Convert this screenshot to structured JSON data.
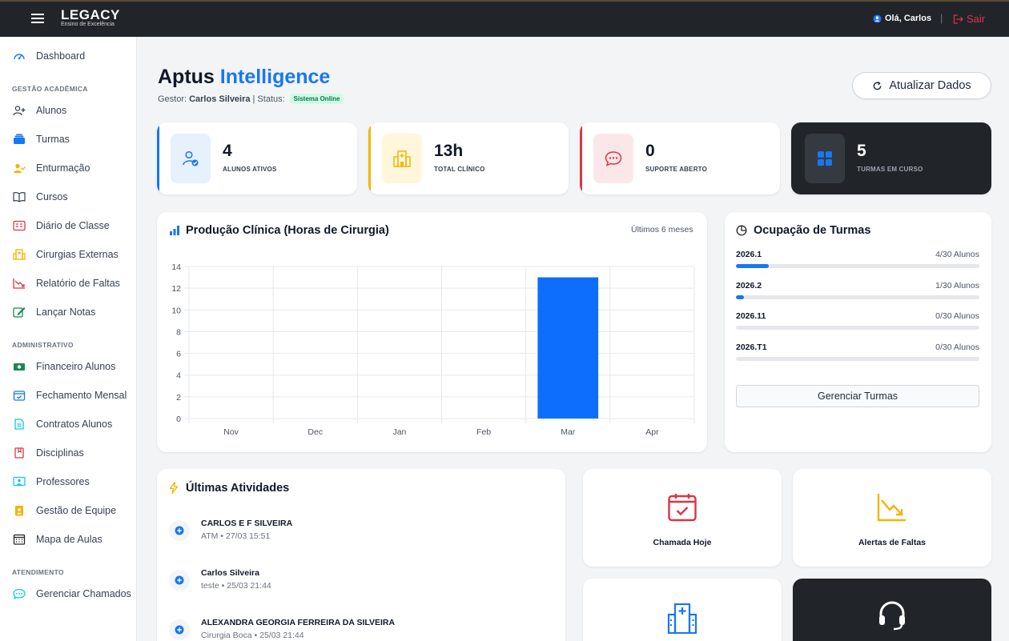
{
  "topbar": {
    "logo_main": "LEGACY",
    "logo_sub": "Ensino de Excelência",
    "greeting": "Olá, Carlos",
    "separator": "|",
    "logout": "Sair"
  },
  "sidebar": {
    "dashboard": "Dashboard",
    "sections": {
      "academica": "GESTÃO ACADÊMICA",
      "administrativo": "ADMINISTRATIVO",
      "atendimento": "ATENDIMENTO"
    },
    "academica_items": [
      "Alunos",
      "Turmas",
      "Enturmação",
      "Cursos",
      "Diário de Classe",
      "Cirurgias Externas",
      "Relatório de Faltas",
      "Lançar Notas"
    ],
    "admin_items": [
      "Financeiro Alunos",
      "Fechamento Mensal",
      "Contratos Alunos",
      "Disciplinas",
      "Professores",
      "Gestão de Equipe",
      "Mapa de Aulas"
    ],
    "atendimento_items": [
      "Gerenciar Chamados"
    ]
  },
  "header": {
    "title_main": "Aptus",
    "title_accent": "Intelligence",
    "gestor_label": "Gestor:",
    "gestor_name": "Carlos Silveira",
    "status_label": "| Status:",
    "status_badge": "Sistema Online",
    "refresh_label": "Atualizar Dados"
  },
  "stats": [
    {
      "value": "4",
      "label": "ALUNOS ATIVOS",
      "color": "#1877f2"
    },
    {
      "value": "13h",
      "label": "TOTAL CLÍNICO",
      "color": "#f5b400"
    },
    {
      "value": "0",
      "label": "SUPORTE ABERTO",
      "color": "#dc3545"
    },
    {
      "value": "5",
      "label": "TURMAS EM CURSO",
      "color": "#212529"
    }
  ],
  "production": {
    "title": "Produção Clínica (Horas de Cirurgia)",
    "range_label": "Últimos 6 meses"
  },
  "chart_data": {
    "type": "bar",
    "categories": [
      "Nov",
      "Dec",
      "Jan",
      "Feb",
      "Mar",
      "Apr"
    ],
    "values": [
      0,
      0,
      0,
      0,
      13,
      0
    ],
    "ylim": [
      0,
      14
    ],
    "yticks": [
      0,
      2,
      4,
      6,
      8,
      10,
      12,
      14
    ],
    "title": "",
    "xlabel": "",
    "ylabel": "",
    "grid": true,
    "color": "#0d6efd"
  },
  "occupancy": {
    "title": "Ocupação de Turmas",
    "rows": [
      {
        "name": "2026.1",
        "count": "4/30 Alunos",
        "fraction": 0.1333
      },
      {
        "name": "2026.2",
        "count": "1/30 Alunos",
        "fraction": 0.0333
      },
      {
        "name": "2026.11",
        "count": "0/30 Alunos",
        "fraction": 0
      },
      {
        "name": "2026.T1",
        "count": "0/30 Alunos",
        "fraction": 0
      }
    ],
    "manage_label": "Gerenciar Turmas"
  },
  "activities": {
    "title": "Últimas Atividades",
    "items": [
      {
        "name": "CARLOS E F SILVEIRA",
        "meta": "ATM • 27/03 15:51"
      },
      {
        "name": "Carlos Silveira",
        "meta": "teste • 25/03 21:44"
      },
      {
        "name": "ALEXANDRA GEORGIA FERREIRA DA SILVEIRA",
        "meta": "Cirurgia Boca • 25/03 21:44"
      }
    ]
  },
  "quick": {
    "chamada": "Chamada Hoje",
    "alertas": "Alertas de Faltas"
  }
}
